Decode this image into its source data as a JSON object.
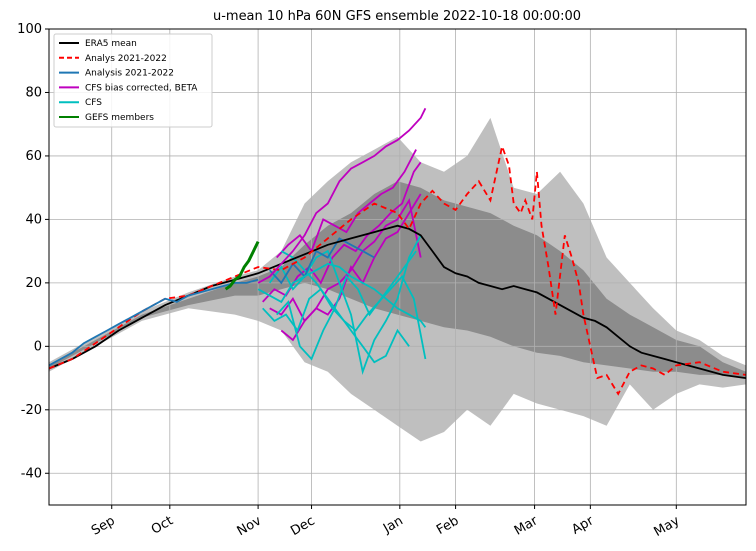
{
  "chart_data": {
    "type": "line",
    "title": "u-mean 10 hPa 60N GFS ensemble 2022-10-18 00:00:00",
    "xlabel": "",
    "ylabel": "",
    "xlim": [
      0,
      300
    ],
    "ylim": [
      -50,
      100
    ],
    "grid": true,
    "legend_position": "top-left",
    "y_ticks": [
      -40,
      -20,
      0,
      20,
      40,
      60,
      80,
      100
    ],
    "x_ticks": [
      {
        "day": 27,
        "label": "Sep"
      },
      {
        "day": 52,
        "label": "Oct"
      },
      {
        "day": 90,
        "label": "Nov"
      },
      {
        "day": 113,
        "label": "Dec"
      },
      {
        "day": 151,
        "label": "Jan"
      },
      {
        "day": 175,
        "label": "Feb"
      },
      {
        "day": 209,
        "label": "Mar"
      },
      {
        "day": 233,
        "label": "Apr"
      },
      {
        "day": 270,
        "label": "May"
      }
    ],
    "bands": [
      {
        "name": "outer range",
        "color": "#bfbfbf",
        "x": [
          0,
          20,
          40,
          60,
          80,
          90,
          100,
          110,
          120,
          130,
          140,
          150,
          160,
          170,
          180,
          190,
          200,
          210,
          220,
          230,
          240,
          250,
          260,
          270,
          280,
          290,
          300
        ],
        "upper": [
          -5,
          3,
          11,
          17,
          22,
          24,
          30,
          45,
          52,
          58,
          62,
          66,
          58,
          55,
          60,
          72,
          50,
          48,
          55,
          45,
          28,
          20,
          12,
          5,
          2,
          -3,
          -6
        ],
        "lower": [
          -8,
          0,
          8,
          12,
          10,
          8,
          5,
          -5,
          -8,
          -15,
          -20,
          -25,
          -30,
          -27,
          -20,
          -25,
          -15,
          -18,
          -20,
          -22,
          -25,
          -12,
          -20,
          -15,
          -12,
          -13,
          -12
        ]
      },
      {
        "name": "inner range",
        "color": "#8c8c8c",
        "x": [
          0,
          20,
          40,
          60,
          80,
          90,
          100,
          110,
          120,
          130,
          140,
          150,
          160,
          170,
          180,
          190,
          200,
          210,
          220,
          230,
          240,
          250,
          260,
          270,
          280,
          290,
          300
        ],
        "upper": [
          -6,
          2,
          10,
          15,
          20,
          22,
          25,
          32,
          38,
          42,
          48,
          52,
          50,
          46,
          44,
          42,
          38,
          35,
          30,
          24,
          15,
          10,
          6,
          2,
          0,
          -5,
          -8
        ],
        "lower": [
          -7,
          1,
          9,
          13,
          16,
          16,
          18,
          20,
          18,
          15,
          12,
          10,
          8,
          6,
          5,
          3,
          0,
          -2,
          -3,
          -5,
          -6,
          -7,
          -8,
          -8,
          -9,
          -9,
          -10
        ]
      }
    ],
    "series": [
      {
        "name": "ERA5 mean",
        "color": "#000000",
        "dash": "",
        "x": [
          0,
          10,
          20,
          30,
          40,
          50,
          60,
          70,
          80,
          90,
          100,
          110,
          120,
          130,
          140,
          150,
          155,
          160,
          165,
          170,
          175,
          180,
          185,
          190,
          195,
          200,
          205,
          210,
          215,
          220,
          225,
          230,
          235,
          240,
          245,
          250,
          255,
          260,
          265,
          270,
          280,
          290,
          300
        ],
        "y": [
          -7,
          -4,
          0,
          5,
          9,
          13,
          16,
          19,
          21,
          23,
          26,
          29,
          32,
          34,
          36,
          38,
          37,
          35,
          30,
          25,
          23,
          22,
          20,
          19,
          18,
          19,
          18,
          17,
          15,
          13,
          11,
          9,
          8,
          6,
          3,
          0,
          -2,
          -3,
          -4,
          -5,
          -7,
          -9,
          -10
        ]
      },
      {
        "name": "Analys 2021-2022",
        "color": "#ff0000",
        "dash": "6,4",
        "x": [
          0,
          10,
          20,
          30,
          40,
          50,
          60,
          70,
          80,
          90,
          100,
          110,
          120,
          130,
          140,
          150,
          155,
          160,
          165,
          170,
          175,
          180,
          185,
          190,
          195,
          198,
          200,
          203,
          205,
          208,
          210,
          212,
          215,
          218,
          222,
          225,
          228,
          230,
          233,
          236,
          240,
          245,
          250,
          255,
          260,
          265,
          270,
          280,
          290,
          300
        ],
        "y": [
          -7,
          -4,
          1,
          6,
          11,
          15,
          16,
          19,
          22,
          25,
          24,
          28,
          34,
          40,
          45,
          42,
          37,
          45,
          49,
          45,
          43,
          48,
          52,
          46,
          63,
          57,
          45,
          42,
          46,
          40,
          55,
          38,
          25,
          10,
          35,
          28,
          20,
          10,
          0,
          -10,
          -9,
          -15,
          -8,
          -6,
          -7,
          -9,
          -6,
          -5,
          -8,
          -9
        ]
      },
      {
        "name": "Analysis 2021-2022",
        "color": "#1f77b4",
        "dash": "",
        "x": [
          0,
          5,
          10,
          15,
          20,
          25,
          30,
          35,
          40,
          45,
          50,
          55,
          60,
          65,
          70,
          75,
          80,
          85,
          90
        ],
        "y": [
          -6,
          -4,
          -2,
          1,
          3,
          5,
          7,
          9,
          11,
          13,
          15,
          14,
          16,
          17,
          18,
          19,
          20,
          20,
          21
        ]
      },
      {
        "name": "CFS bias corrected, BETA",
        "color": "#bf00bf",
        "dash": "",
        "x": [
          90,
          95,
          100,
          105,
          110,
          115,
          120,
          125,
          130,
          135,
          140,
          145,
          150,
          155,
          160,
          162
        ],
        "y": [
          20,
          22,
          26,
          30,
          35,
          42,
          45,
          52,
          56,
          58,
          60,
          63,
          65,
          68,
          72,
          75
        ]
      },
      {
        "name": "CFS",
        "color": "#00bfbf",
        "dash": "",
        "x": [
          90,
          95,
          100,
          105,
          110,
          115,
          120,
          125,
          130,
          135,
          140,
          145,
          150,
          155,
          160,
          162
        ],
        "y": [
          18,
          16,
          14,
          20,
          22,
          24,
          26,
          25,
          22,
          20,
          18,
          15,
          12,
          10,
          8,
          6
        ]
      },
      {
        "name": "GEFS members",
        "color": "#008000",
        "dash": "",
        "x": [
          76,
          78,
          80,
          82,
          84,
          86,
          88,
          90
        ],
        "y": [
          18,
          19,
          21,
          22,
          25,
          27,
          30,
          33
        ]
      }
    ],
    "extra_lines": [
      {
        "color": "#bf00bf",
        "x": [
          92,
          97,
          102,
          107,
          112,
          117,
          122,
          127,
          132,
          137,
          142,
          147,
          152,
          157,
          160
        ],
        "y": [
          14,
          18,
          16,
          22,
          25,
          20,
          28,
          32,
          30,
          35,
          38,
          42,
          45,
          55,
          58
        ]
      },
      {
        "color": "#bf00bf",
        "x": [
          95,
          100,
          105,
          110,
          115,
          120,
          125,
          130,
          135,
          140,
          145,
          150,
          155,
          160
        ],
        "y": [
          12,
          10,
          15,
          8,
          12,
          18,
          20,
          24,
          30,
          33,
          38,
          40,
          46,
          28
        ]
      },
      {
        "color": "#bf00bf",
        "x": [
          98,
          103,
          108,
          113,
          118,
          123,
          128,
          133,
          138,
          143,
          148,
          153,
          158
        ],
        "y": [
          28,
          32,
          35,
          30,
          40,
          38,
          36,
          42,
          45,
          48,
          50,
          55,
          62
        ]
      },
      {
        "color": "#bf00bf",
        "x": [
          100,
          105,
          110,
          115,
          120,
          125,
          130,
          135,
          140,
          145,
          150,
          155,
          160
        ],
        "y": [
          5,
          2,
          8,
          12,
          10,
          15,
          25,
          20,
          28,
          34,
          36,
          42,
          48
        ]
      },
      {
        "color": "#00bfbf",
        "x": [
          92,
          97,
          102,
          107,
          112,
          117,
          122,
          127,
          132,
          137,
          142,
          147,
          152,
          157,
          162
        ],
        "y": [
          12,
          8,
          10,
          5,
          15,
          18,
          12,
          8,
          5,
          10,
          14,
          18,
          22,
          15,
          -4
        ]
      },
      {
        "color": "#00bfbf",
        "x": [
          95,
          100,
          105,
          110,
          115,
          120,
          125,
          130,
          135,
          140,
          145,
          150,
          155,
          160
        ],
        "y": [
          20,
          25,
          18,
          22,
          28,
          30,
          20,
          10,
          -8,
          2,
          8,
          15,
          28,
          35
        ]
      },
      {
        "color": "#00bfbf",
        "x": [
          98,
          103,
          108,
          113,
          118,
          123,
          128,
          133,
          138,
          143,
          148,
          153,
          158
        ],
        "y": [
          10,
          14,
          0,
          -4,
          5,
          12,
          22,
          18,
          10,
          15,
          20,
          25,
          30
        ]
      },
      {
        "color": "#00bfbf",
        "x": [
          100,
          105,
          110,
          115,
          120,
          125,
          130,
          135,
          140,
          145,
          150,
          155
        ],
        "y": [
          30,
          28,
          24,
          20,
          15,
          10,
          5,
          0,
          -5,
          -3,
          5,
          0
        ]
      },
      {
        "color": "#1f77b4",
        "x": [
          95,
          100,
          105,
          110,
          115,
          120,
          125,
          130,
          135,
          140
        ],
        "y": [
          24,
          20,
          26,
          22,
          30,
          28,
          34,
          32,
          30,
          28
        ]
      }
    ]
  }
}
